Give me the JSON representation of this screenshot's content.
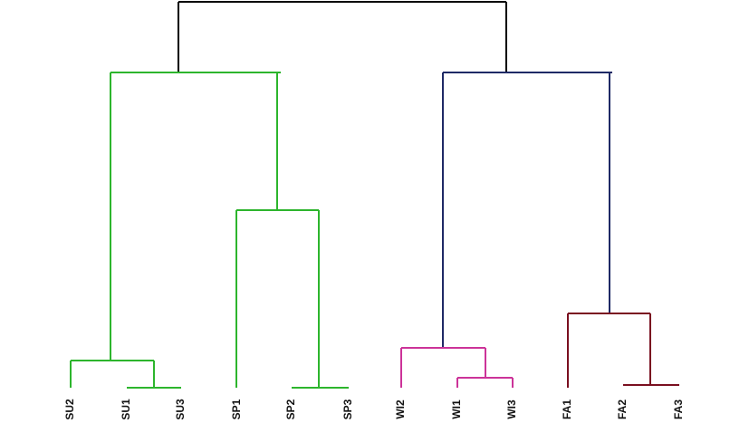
{
  "leaves": [
    "SU2",
    "SU1",
    "SU3",
    "SP1",
    "SP2",
    "SP3",
    "WI2",
    "WI1",
    "WI3",
    "FA1",
    "FA2",
    "FA3"
  ]
}
